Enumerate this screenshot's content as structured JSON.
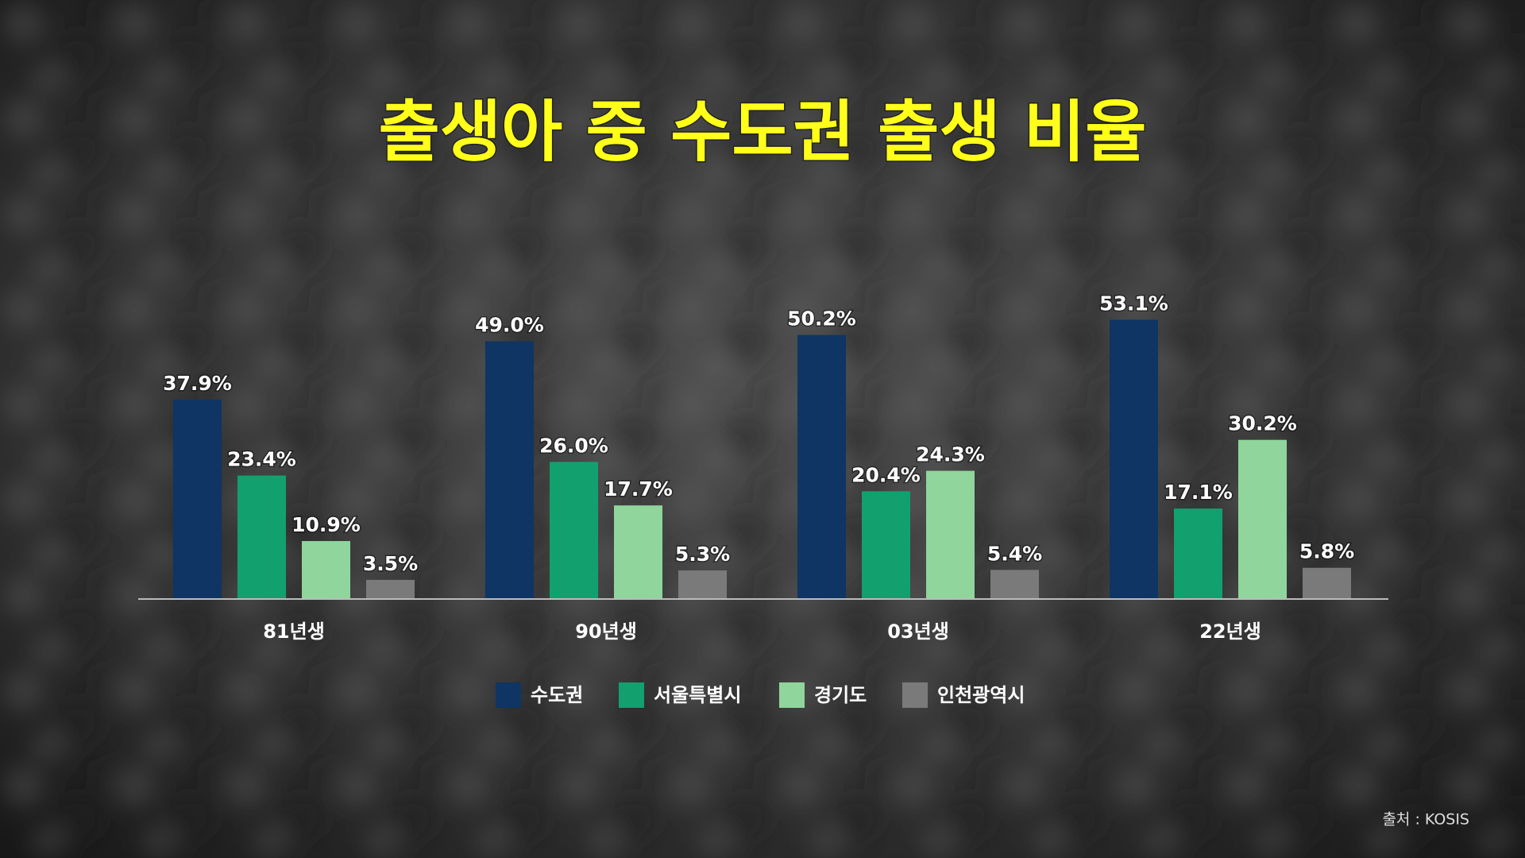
{
  "chart_data": {
    "type": "bar",
    "title": "출생아 중 수도권 출생 비율",
    "categories": [
      "81년생",
      "90년생",
      "03년생",
      "22년생"
    ],
    "series": [
      {
        "name": "수도권",
        "color": "#0e3563",
        "values": [
          37.9,
          49.0,
          50.2,
          53.1
        ],
        "value_labels": [
          "37.9%",
          "49.0%",
          "50.2%",
          "53.1%"
        ]
      },
      {
        "name": "서울특별시",
        "color": "#12a06f",
        "values": [
          23.4,
          26.0,
          20.4,
          17.1
        ],
        "value_labels": [
          "23.4%",
          "26.0%",
          "20.4%",
          "17.1%"
        ]
      },
      {
        "name": "경기도",
        "color": "#90d59c",
        "values": [
          10.9,
          17.7,
          24.3,
          30.2
        ],
        "value_labels": [
          "10.9%",
          "17.7%",
          "24.3%",
          "30.2%"
        ]
      },
      {
        "name": "인천광역시",
        "color": "#7a7a7a",
        "values": [
          3.5,
          5.3,
          5.4,
          5.8
        ],
        "value_labels": [
          "3.5%",
          "5.3%",
          "5.4%",
          "5.8%"
        ]
      }
    ],
    "source": "출처 : KOSIS"
  }
}
